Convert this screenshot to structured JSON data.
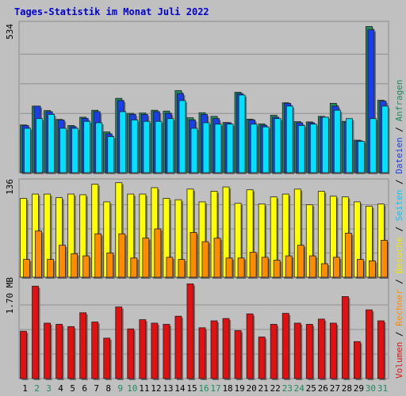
{
  "title": "Tages-Statistik im Monat Juli 2022",
  "colors": {
    "background": "#c0c0c0",
    "anfragen": "#1f8a5e",
    "dateien": "#1a3ee8",
    "seiten": "#00e0ff",
    "besuche": "#ffff00",
    "rechner": "#ff8c00",
    "volumen": "#e21010",
    "title": "#0000cc",
    "weekend_label": "#1f8a5e"
  },
  "legend": {
    "right_side": [
      {
        "text": "Volumen",
        "color": "#e21010"
      },
      {
        "text": " / ",
        "color": "#000000"
      },
      {
        "text": "Rechner",
        "color": "#ff8c00"
      },
      {
        "text": " / ",
        "color": "#000000"
      },
      {
        "text": "Besuche",
        "color": "#e8e800"
      },
      {
        "text": " / ",
        "color": "#000000"
      },
      {
        "text": "Seiten",
        "color": "#00c8ff"
      },
      {
        "text": " / ",
        "color": "#000000"
      },
      {
        "text": "Dateien",
        "color": "#1a3ee8"
      },
      {
        "text": " / ",
        "color": "#000000"
      },
      {
        "text": "Anfragen",
        "color": "#1f8a5e"
      }
    ]
  },
  "chart_data": [
    {
      "type": "bar",
      "name": "top",
      "axis_label": "534",
      "ymax": 534,
      "categories": [
        "1",
        "2",
        "3",
        "4",
        "5",
        "6",
        "7",
        "8",
        "9",
        "10",
        "11",
        "12",
        "13",
        "14",
        "15",
        "16",
        "17",
        "18",
        "19",
        "20",
        "21",
        "22",
        "23",
        "24",
        "25",
        "26",
        "27",
        "28",
        "29",
        "30",
        "31"
      ],
      "weekend_days": [
        "2",
        "3",
        "9",
        "10",
        "16",
        "17",
        "23",
        "24",
        "30",
        "31"
      ],
      "series": [
        {
          "name": "Anfragen",
          "values": [
            172,
            240,
            224,
            192,
            170,
            200,
            225,
            147,
            268,
            214,
            215,
            225,
            222,
            296,
            198,
            216,
            203,
            181,
            290,
            193,
            176,
            207,
            252,
            184,
            183,
            203,
            250,
            185,
            117,
            527,
            261
          ]
        },
        {
          "name": "Dateien",
          "values": [
            170,
            240,
            220,
            190,
            166,
            196,
            220,
            140,
            260,
            210,
            210,
            220,
            214,
            285,
            190,
            210,
            195,
            180,
            285,
            190,
            171,
            200,
            250,
            180,
            180,
            200,
            240,
            182,
            115,
            515,
            258
          ]
        },
        {
          "name": "Seiten",
          "values": [
            160,
            195,
            210,
            160,
            160,
            185,
            180,
            130,
            220,
            190,
            185,
            185,
            195,
            260,
            160,
            180,
            175,
            175,
            280,
            175,
            165,
            195,
            240,
            170,
            175,
            200,
            225,
            195,
            113,
            195,
            240
          ]
        }
      ]
    },
    {
      "type": "bar",
      "name": "middle",
      "axis_label": "136",
      "ymax": 136,
      "categories": [
        "1",
        "2",
        "3",
        "4",
        "5",
        "6",
        "7",
        "8",
        "9",
        "10",
        "11",
        "12",
        "13",
        "14",
        "15",
        "16",
        "17",
        "18",
        "19",
        "20",
        "21",
        "22",
        "23",
        "24",
        "25",
        "26",
        "27",
        "28",
        "29",
        "30",
        "31"
      ],
      "series": [
        {
          "name": "Besuche",
          "values": [
            111,
            117,
            117,
            112,
            117,
            116,
            131,
            106,
            133,
            117,
            117,
            126,
            111,
            109,
            124,
            106,
            121,
            127,
            104,
            123,
            103,
            113,
            117,
            124,
            102,
            121,
            114,
            113,
            106,
            100,
            103
          ]
        },
        {
          "name": "Rechner",
          "values": [
            25,
            65,
            25,
            45,
            33,
            30,
            61,
            34,
            61,
            27,
            55,
            68,
            28,
            25,
            63,
            50,
            55,
            27,
            27,
            35,
            28,
            24,
            30,
            45,
            30,
            19,
            28,
            62,
            25,
            23,
            52
          ]
        }
      ]
    },
    {
      "type": "bar",
      "name": "bottom",
      "axis_label": "1.70 MB",
      "ymax": 1.7,
      "categories": [
        "1",
        "2",
        "3",
        "4",
        "5",
        "6",
        "7",
        "8",
        "9",
        "10",
        "11",
        "12",
        "13",
        "14",
        "15",
        "16",
        "17",
        "18",
        "19",
        "20",
        "21",
        "22",
        "23",
        "24",
        "25",
        "26",
        "27",
        "28",
        "29",
        "30",
        "31"
      ],
      "series": [
        {
          "name": "Volumen",
          "values": [
            0.82,
            1.6,
            0.96,
            0.94,
            0.9,
            1.14,
            0.98,
            0.7,
            1.24,
            0.86,
            1.02,
            0.96,
            0.94,
            1.08,
            1.64,
            0.88,
            1.0,
            1.04,
            0.83,
            1.12,
            0.72,
            0.94,
            1.13,
            0.96,
            0.94,
            1.03,
            0.96,
            1.42,
            0.64,
            1.19,
            1.0
          ]
        }
      ]
    }
  ]
}
